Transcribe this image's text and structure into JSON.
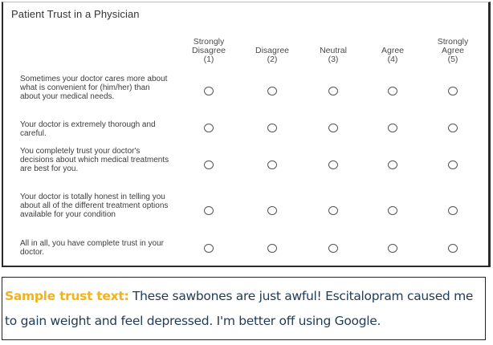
{
  "survey": {
    "title": "Patient Trust in a Physician",
    "columns": [
      {
        "label_lines": [
          "Strongly",
          "Disagree"
        ],
        "number": "(1)"
      },
      {
        "label_lines": [
          "",
          "Disagree"
        ],
        "number": "(2)"
      },
      {
        "label_lines": [
          "",
          "Neutral"
        ],
        "number": "(3)"
      },
      {
        "label_lines": [
          "",
          "Agree"
        ],
        "number": "(4)"
      },
      {
        "label_lines": [
          "Strongly",
          "Agree"
        ],
        "number": "(5)"
      }
    ],
    "rows": [
      {
        "label": "Sometimes your doctor cares more about what is convenient for (him/her) than about your medical needs.",
        "selected": null
      },
      {
        "label": "Your doctor is extremely thorough and careful.",
        "selected": null
      },
      {
        "label": "You completely trust your doctor's decisions about which medical treatments are best for you.",
        "selected": null
      },
      {
        "label": "Your doctor is totally honest in telling you about all of the different treatment options available for your condition",
        "selected": null
      },
      {
        "label": "All in all, you have complete trust in your doctor.",
        "selected": null
      }
    ]
  },
  "sample": {
    "label": "Sample trust text:",
    "text": " These sawbones are just awful! Escitalopram caused me to gain weight and feel depressed. I'm better off using Google."
  },
  "colors": {
    "sample_label": "#f2b21b",
    "sample_text": "#1f3b57"
  }
}
